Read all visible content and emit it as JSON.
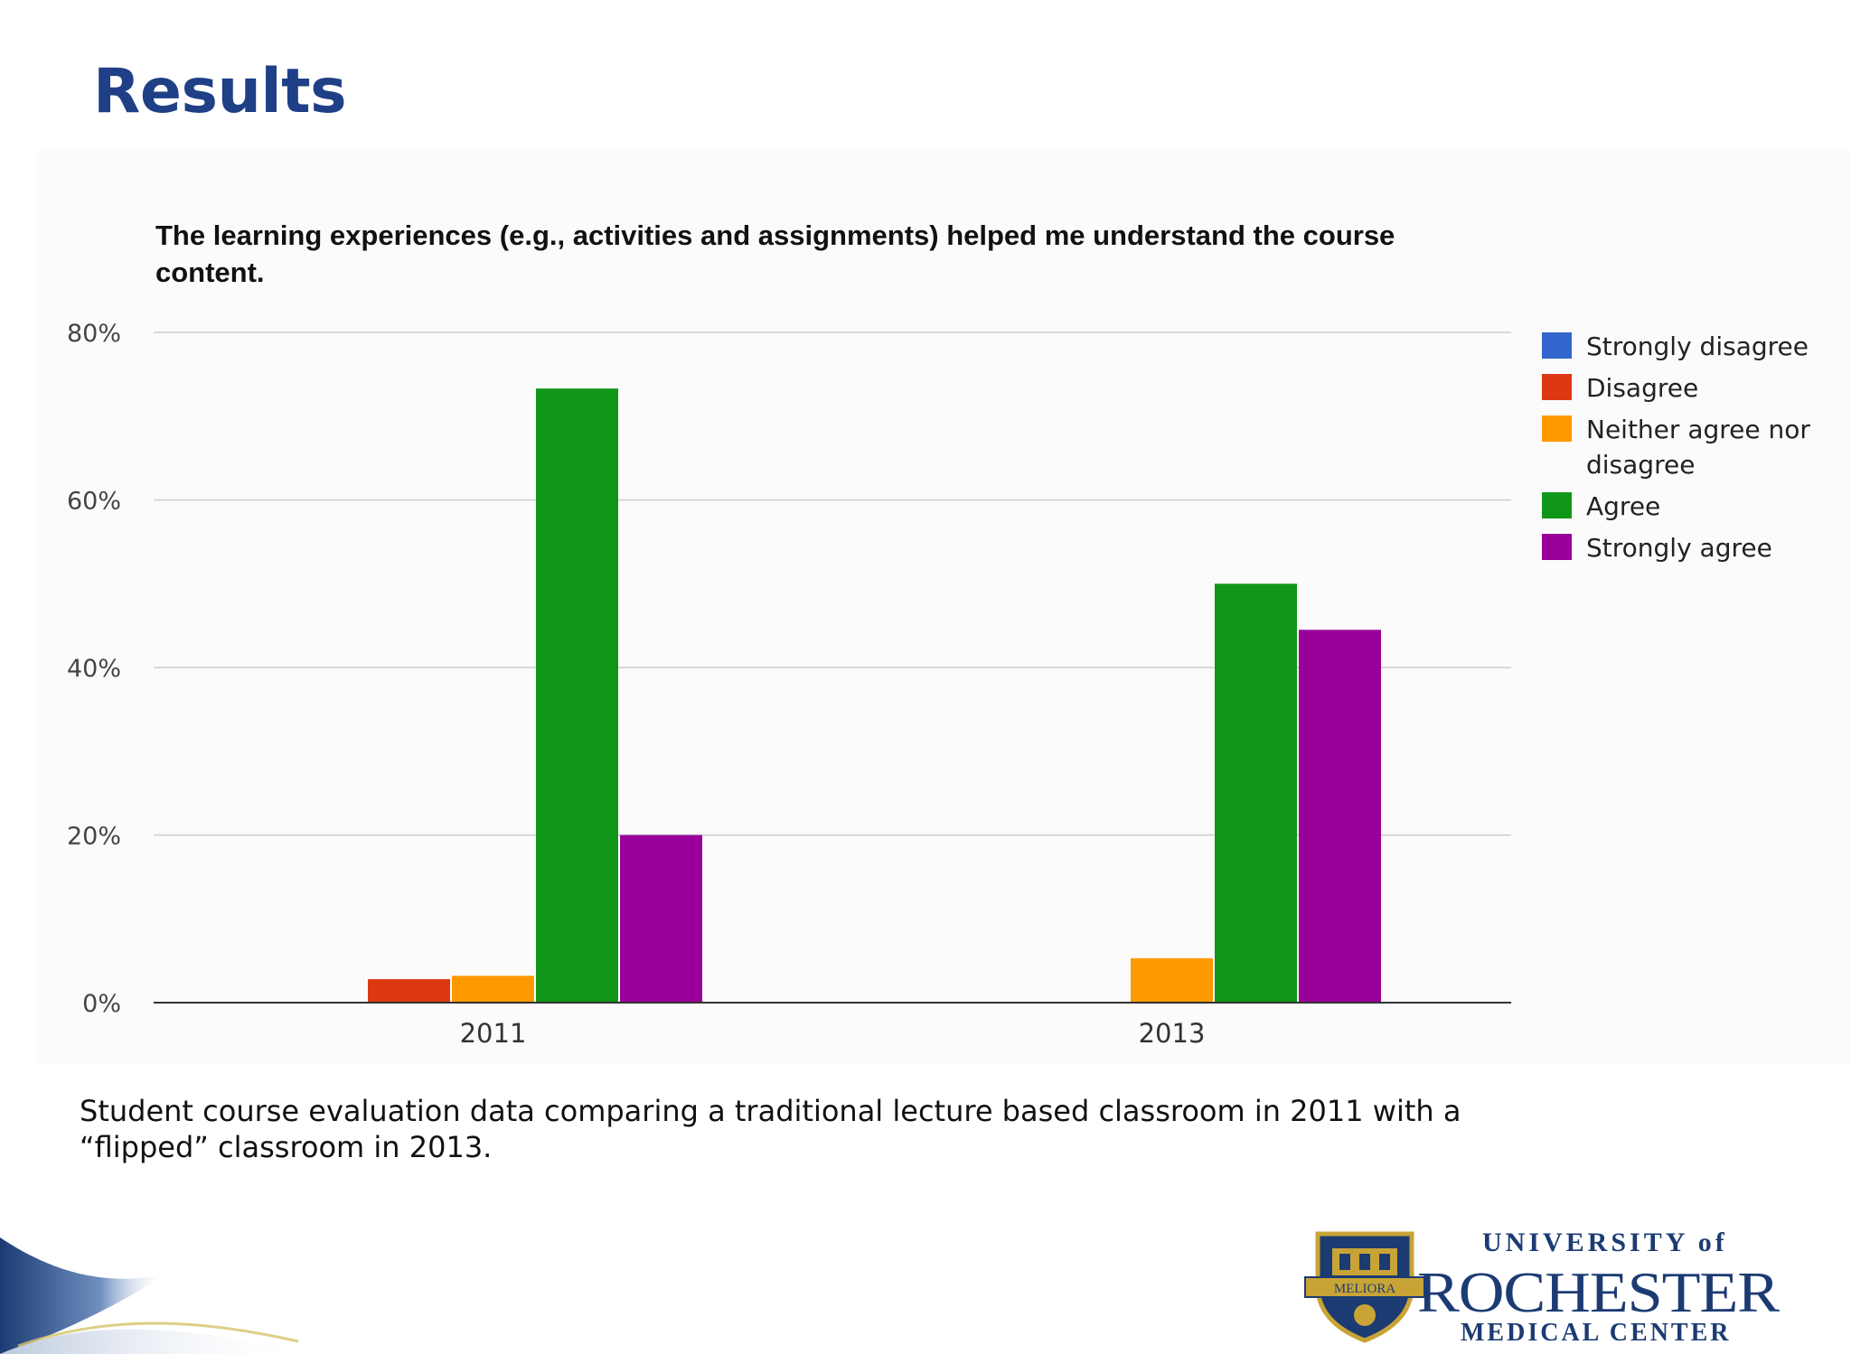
{
  "slide": {
    "title": "Results",
    "caption": "Student course evaluation data comparing a traditional lecture based classroom in 2011 with a “flipped” classroom in 2013.",
    "logo": {
      "line1": "UNIVERSITY of",
      "line2": "ROCHESTER",
      "line3": "MEDICAL CENTER",
      "seal_text": "MELIORA"
    },
    "colors": {
      "title": "#1f3f86",
      "brand_navy": "#1c3b73",
      "brand_gold": "#c8a437"
    }
  },
  "chart_data": {
    "type": "bar",
    "title": "The learning experiences (e.g., activities and assignments) helped me understand the course content.",
    "categories": [
      "2011",
      "2013"
    ],
    "series": [
      {
        "name": "Strongly disagree",
        "color": "#3366cc",
        "values": [
          0,
          0
        ]
      },
      {
        "name": "Disagree",
        "color": "#dc3912",
        "values": [
          2.8,
          0
        ]
      },
      {
        "name": "Neither agree nor disagree",
        "color": "#ff9900",
        "values": [
          3.2,
          5.3
        ]
      },
      {
        "name": "Agree",
        "color": "#109618",
        "values": [
          73.3,
          50
        ]
      },
      {
        "name": "Strongly agree",
        "color": "#990099",
        "values": [
          20,
          44.5
        ]
      }
    ],
    "y_ticks": [
      "0%",
      "20%",
      "40%",
      "60%",
      "80%"
    ],
    "ylim": [
      0,
      80
    ],
    "y_unit": "%",
    "grid": true,
    "legend_position": "right"
  }
}
